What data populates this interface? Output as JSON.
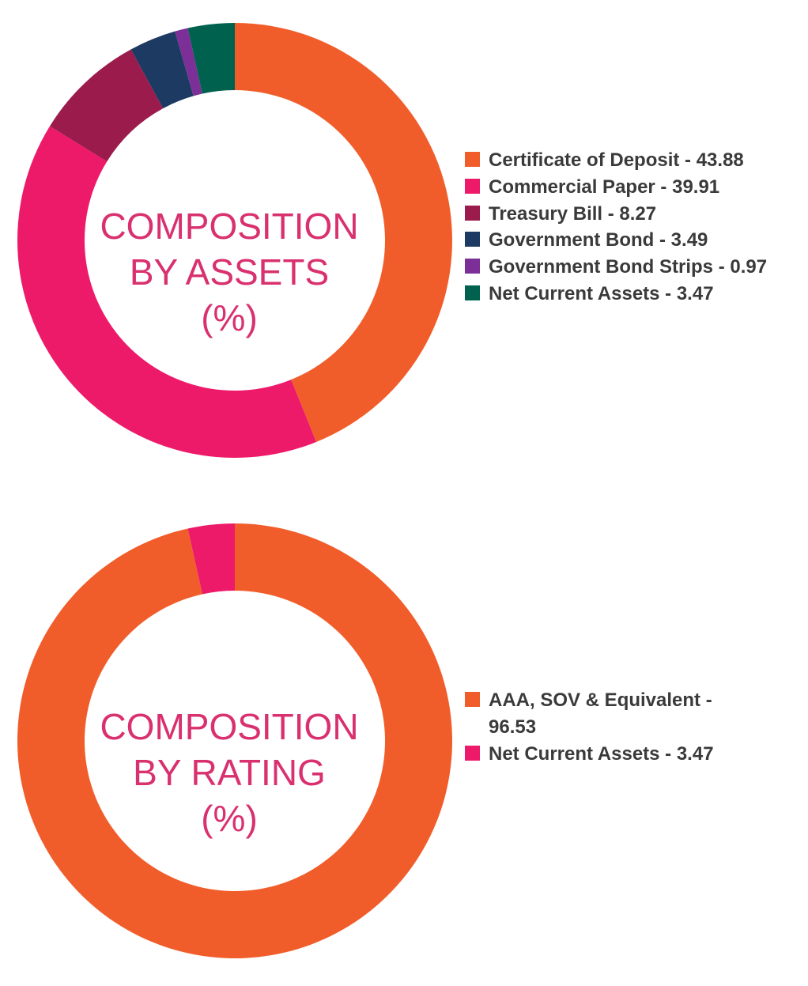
{
  "chart_data": [
    {
      "type": "pie",
      "title_lines": [
        "COMPOSITION",
        "BY ASSETS",
        "(%)"
      ],
      "slices": [
        {
          "label": "Certificate of Deposit - 43.88",
          "value": 43.88,
          "color": "#f15d2a"
        },
        {
          "label": "Commercial Paper - 39.91",
          "value": 39.91,
          "color": "#ed1a6a"
        },
        {
          "label": "Treasury Bill - 8.27",
          "value": 8.27,
          "color": "#9c1b4d"
        },
        {
          "label": "Government Bond - 3.49",
          "value": 3.49,
          "color": "#1d3a63"
        },
        {
          "label": "Government Bond Strips - 0.97",
          "value": 0.97,
          "color": "#7b2f97"
        },
        {
          "label": "Net Current Assets - 3.47",
          "value": 3.47,
          "color": "#00614f"
        }
      ],
      "legend_position": "right"
    },
    {
      "type": "pie",
      "title_lines": [
        "COMPOSITION",
        "BY RATING",
        "(%)"
      ],
      "slices": [
        {
          "label": "AAA, SOV & Equivalent - 96.53",
          "value": 96.53,
          "color": "#f15d2a"
        },
        {
          "label": "Net Current Assets - 3.47",
          "value": 3.47,
          "color": "#ed1a6a"
        }
      ],
      "legend_position": "right"
    }
  ]
}
